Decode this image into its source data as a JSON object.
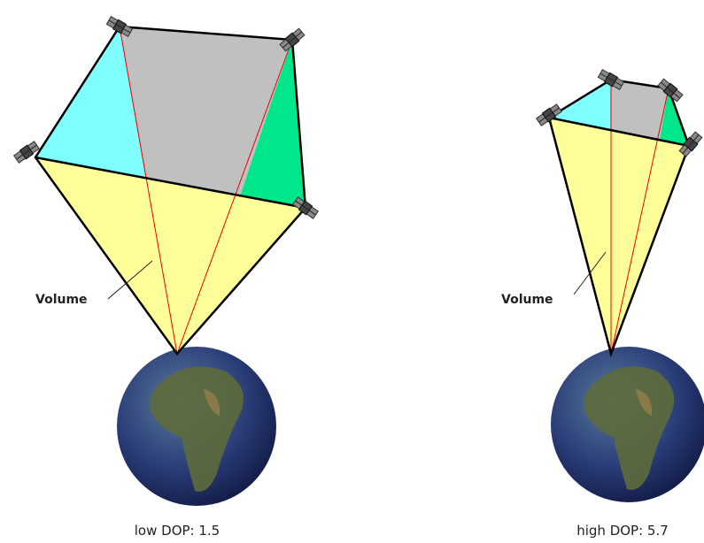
{
  "panels": [
    {
      "volume_label": "Volume",
      "caption": "low DOP: 1.5"
    },
    {
      "volume_label": "Volume",
      "caption": "high DOP: 5.7"
    }
  ]
}
